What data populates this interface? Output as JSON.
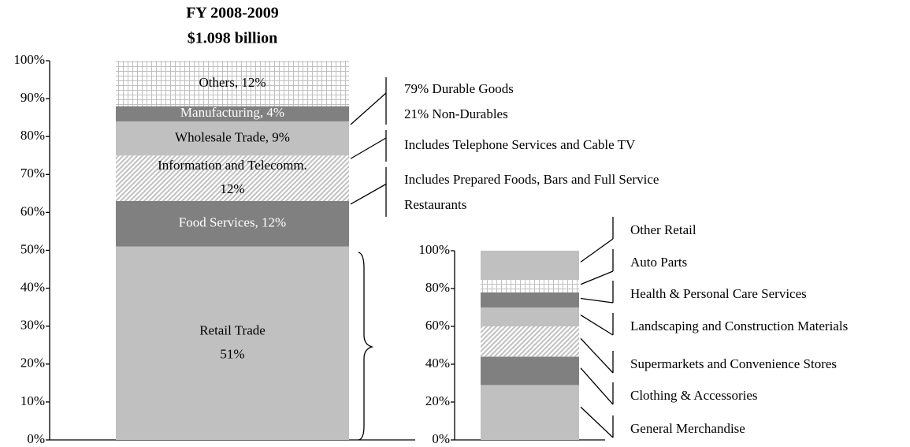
{
  "chart_data": [
    {
      "type": "bar",
      "stacked": true,
      "title": "FY 2008-2009",
      "subtitle": "$1.098 billion",
      "ylim": [
        0,
        100
      ],
      "yticks": [
        {
          "value": 0,
          "label": "0%"
        },
        {
          "value": 10,
          "label": "10%"
        },
        {
          "value": 20,
          "label": "20%"
        },
        {
          "value": 30,
          "label": "30%"
        },
        {
          "value": 40,
          "label": "40%"
        },
        {
          "value": 50,
          "label": "50%"
        },
        {
          "value": 60,
          "label": "60%"
        },
        {
          "value": 70,
          "label": "70%"
        },
        {
          "value": 80,
          "label": "80%"
        },
        {
          "value": 90,
          "label": "90%"
        },
        {
          "value": 100,
          "label": "100%"
        }
      ],
      "series": [
        {
          "values": [
            51
          ],
          "value_labels": [
            "Retail Trade\n51%"
          ],
          "color": "#c0c0c0"
        },
        {
          "values": [
            12
          ],
          "value_labels": [
            "Food Services, 12%"
          ],
          "color": "#808080"
        },
        {
          "values": [
            12
          ],
          "value_labels": [
            "Information and Telecomm.\n12%"
          ],
          "color": "#c0c0c0",
          "pattern": "diagonal"
        },
        {
          "values": [
            9
          ],
          "value_labels": [
            "Wholesale Trade, 9%"
          ],
          "color": "#c0c0c0"
        },
        {
          "values": [
            4
          ],
          "value_labels": [
            "Manufacturing, 4%"
          ],
          "color": "#808080"
        },
        {
          "values": [
            12
          ],
          "value_labels": [
            "Others, 12%"
          ],
          "color": "#c0c0c0",
          "pattern": "grid"
        }
      ],
      "annotations": [
        "79% Durable Goods\n21% Non-Durables",
        "Includes Telephone Services and Cable TV",
        "Includes Prepared Foods, Bars and Full Service\nRestaurants"
      ]
    },
    {
      "type": "bar",
      "stacked": true,
      "ylim": [
        0,
        100
      ],
      "yticks": [
        {
          "value": 0,
          "label": "0%"
        },
        {
          "value": 20,
          "label": "20%"
        },
        {
          "value": 40,
          "label": "40%"
        },
        {
          "value": 60,
          "label": "60%"
        },
        {
          "value": 80,
          "label": "80%"
        },
        {
          "value": 100,
          "label": "100%"
        }
      ],
      "series": [
        {
          "name": "General Merchandise",
          "values": [
            29
          ],
          "color": "#c0c0c0"
        },
        {
          "name": "Clothing & Accessories",
          "values": [
            15
          ],
          "color": "#808080"
        },
        {
          "name": "Supermarkets and Convenience Stores",
          "values": [
            16
          ],
          "color": "#c0c0c0",
          "pattern": "diagonal"
        },
        {
          "name": "Landscaping and Construction Materials",
          "values": [
            10
          ],
          "color": "#c0c0c0"
        },
        {
          "name": "Health & Personal Care Services",
          "values": [
            8
          ],
          "color": "#808080"
        },
        {
          "name": "Auto Parts",
          "values": [
            7
          ],
          "color": "#c0c0c0",
          "pattern": "grid"
        },
        {
          "name": "Other Retail",
          "values": [
            15
          ],
          "color": "#c0c0c0"
        }
      ]
    }
  ]
}
